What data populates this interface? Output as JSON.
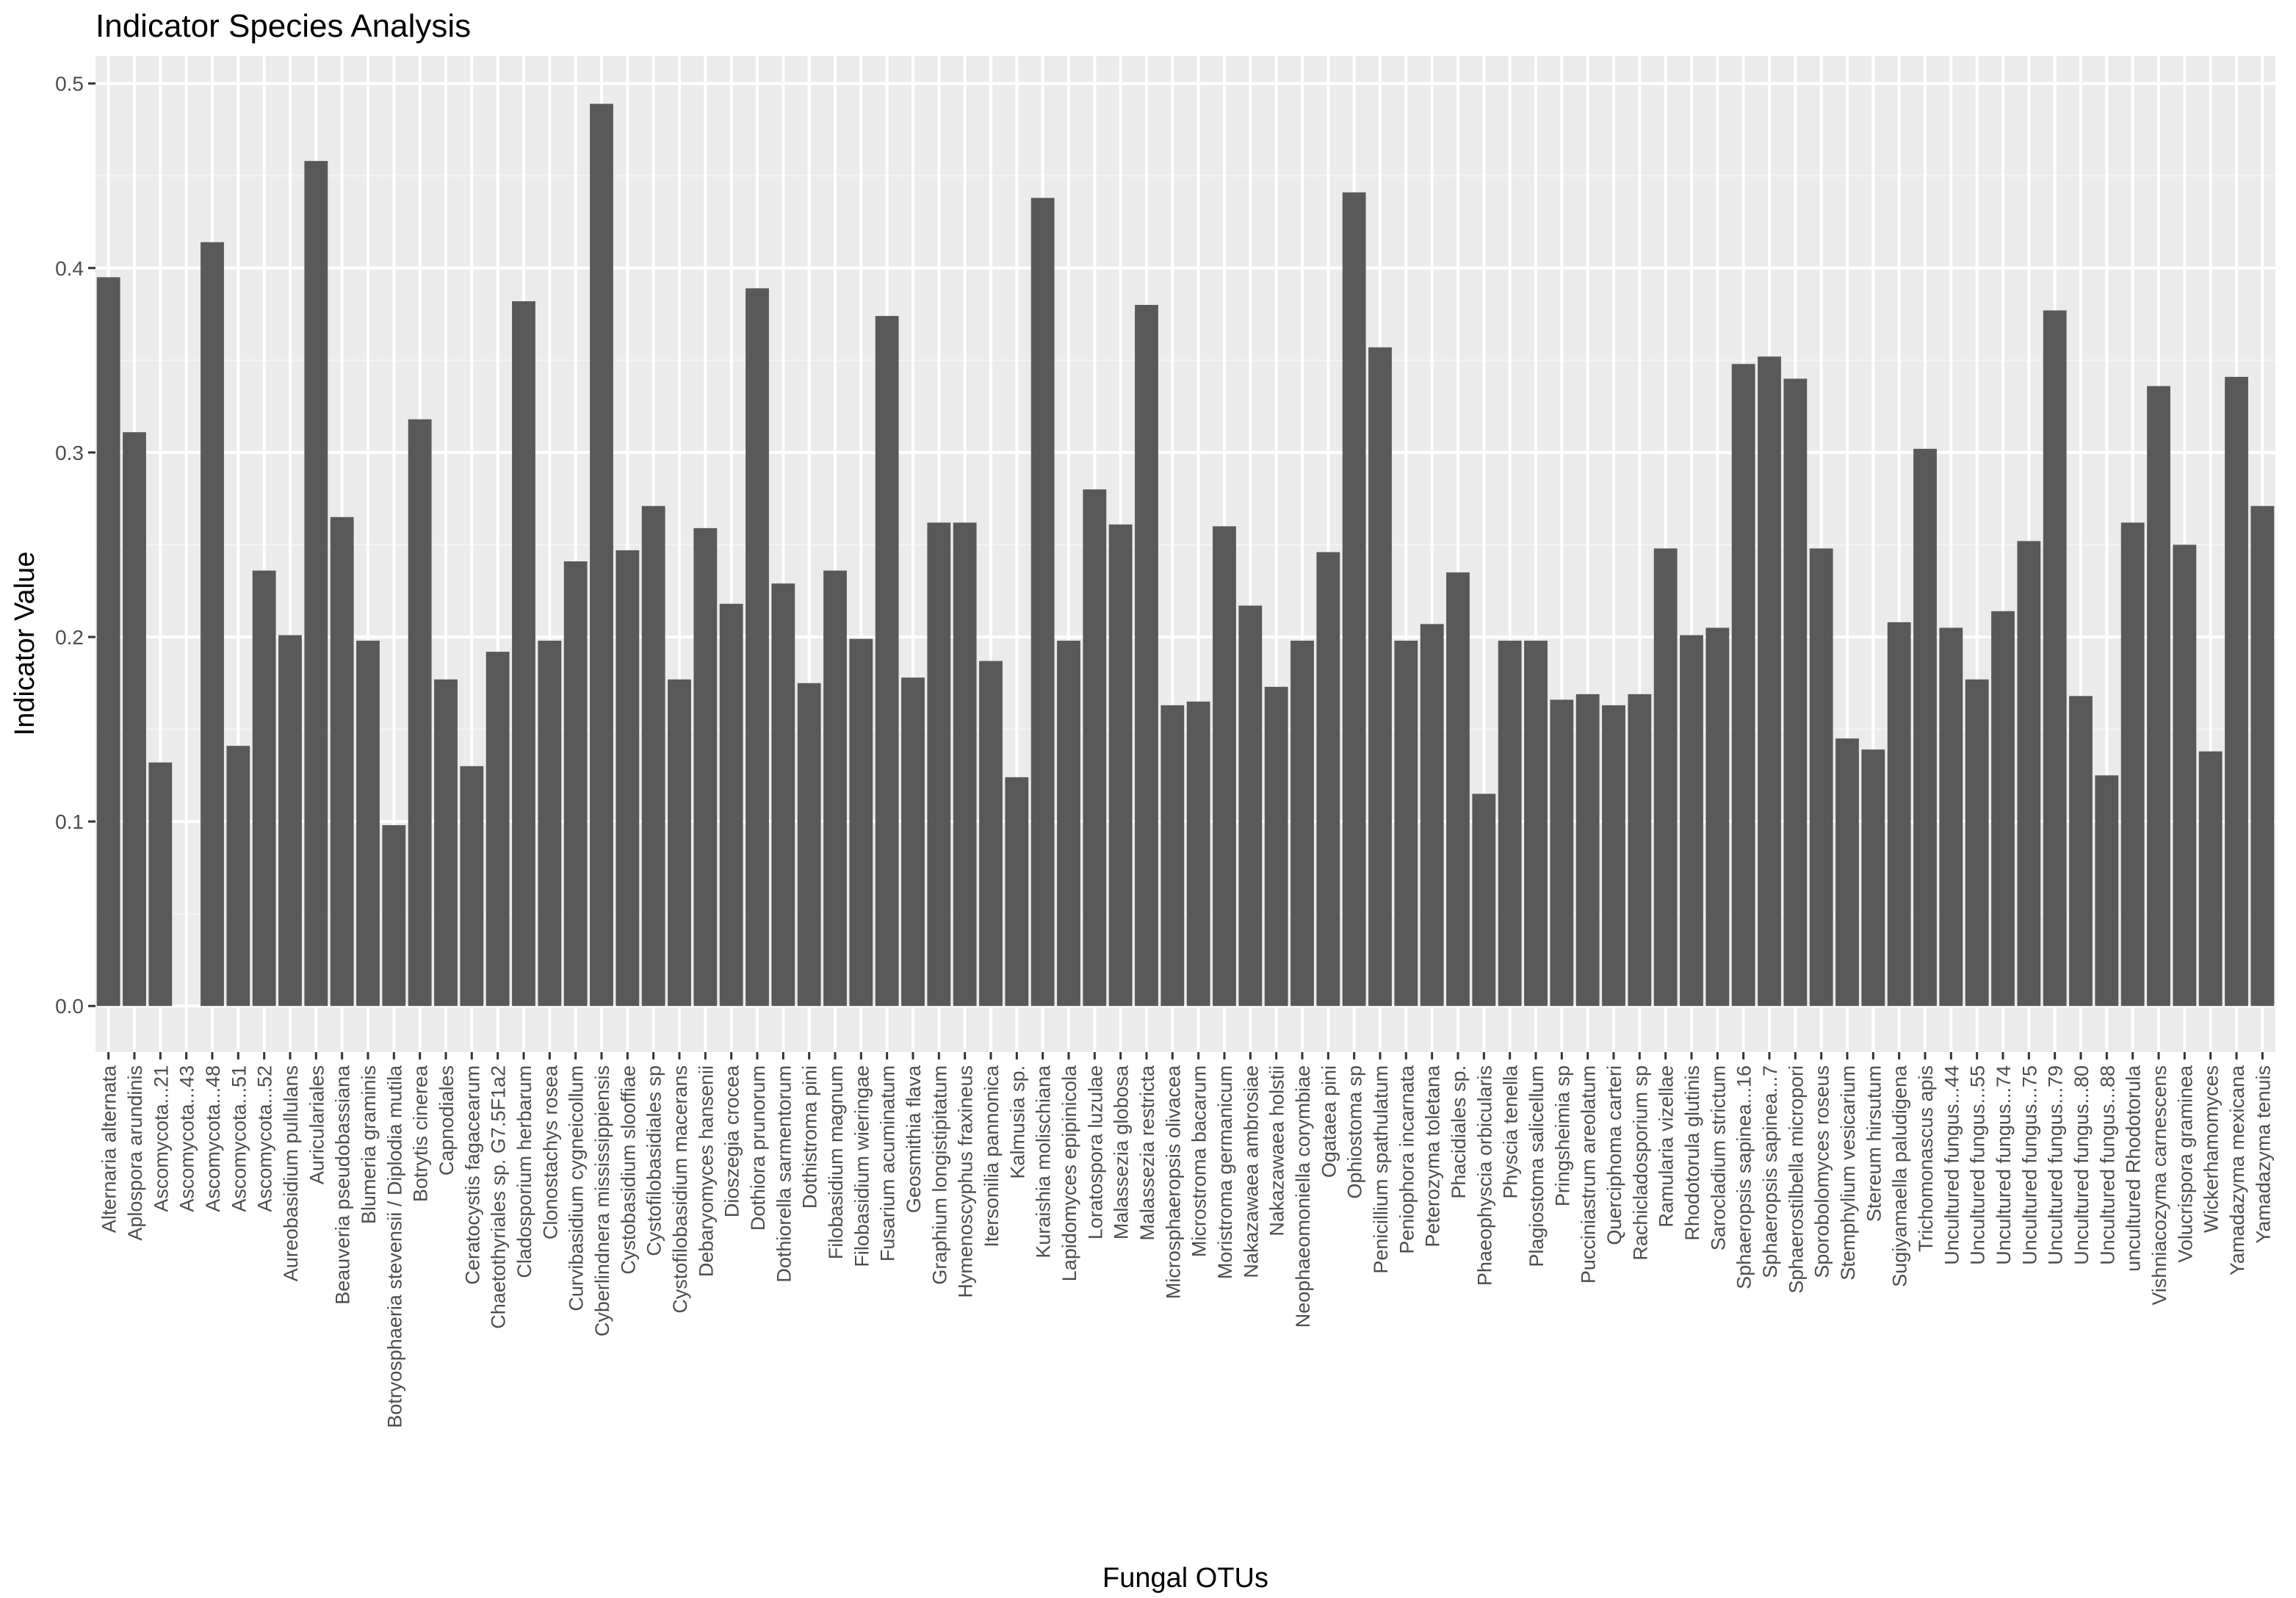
{
  "chart_data": {
    "type": "bar",
    "title": "Indicator Species Analysis",
    "xlabel": "Fungal OTUs",
    "ylabel": "Indicator Value",
    "ylim": [
      -0.025,
      0.515
    ],
    "yticks": [
      "0.0",
      "0.1",
      "0.2",
      "0.3",
      "0.4",
      "0.5"
    ],
    "grid": true,
    "legend": "none",
    "colors": {
      "bar": "#595959",
      "panel": "#ebebeb",
      "grid_major": "#ffffff",
      "grid_minor": "#f4f4f4",
      "tick_text": "#4d4d4d"
    },
    "categories": [
      "Alternaria alternata",
      "Aplospora arundinis",
      "Ascomycota...21",
      "Ascomycota...43",
      "Ascomycota...48",
      "Ascomycota...51",
      "Ascomycota...52",
      "Aureobasidium pullulans",
      "Auriculariales",
      "Beauveria pseudobassiana",
      "Blumeria graminis",
      "Botryosphaeria stevensii / Diplodia mutila",
      "Botrytis cinerea",
      "Capnodiales",
      "Ceratocystis fagacearum",
      "Chaetothyriales sp. G7.5F1a2",
      "Cladosporium herbarum",
      "Clonostachys rosea",
      "Curvibasidium cygneicollum",
      "Cyberlindnera mississippiensis",
      "Cystobasidium slooffiae",
      "Cystofilobasidiales sp",
      "Cystofilobasidium macerans",
      "Debaryomyces hansenii",
      "Dioszegia crocea",
      "Dothiora prunorum",
      "Dothiorella sarmentorum",
      "Dothistroma pini",
      "Filobasidium magnum",
      "Filobasidium wieringae",
      "Fusarium acuminatum",
      "Geosmithia flava",
      "Graphium longistipitatum",
      "Hymenoscyphus fraxineus",
      "Itersonilia pannonica",
      "Kalmusia sp.",
      "Kuraishia molischiana",
      "Lapidomyces epipinicola",
      "Loratospora luzulae",
      "Malassezia globosa",
      "Malassezia restricta",
      "Microsphaeropsis olivacea",
      "Microstroma bacarum",
      "Moristroma germanicum",
      "Nakazawaea ambrosiae",
      "Nakazawaea holstii",
      "Neophaeomoniella corymbiae",
      "Ogataea pini",
      "Ophiostoma sp",
      "Penicillium spathulatum",
      "Peniophora incarnata",
      "Peterozyma toletana",
      "Phacidiales sp.",
      "Phaeophyscia orbicularis",
      "Physcia tenella",
      "Plagiostoma salicellum",
      "Pringsheimia sp",
      "Pucciniastrum areolatum",
      "Querciphoma carteri",
      "Rachicladosporium sp",
      "Ramularia vizellae",
      "Rhodotorula glutinis",
      "Sarocladium strictum",
      "Sphaeropsis sapinea...16",
      "Sphaeropsis sapinea...7",
      "Sphaerostilbella micropori",
      "Sporobolomyces roseus",
      "Stemphylium vesicarium",
      "Stereum hirsutum",
      "Sugiyamaella paludigena",
      "Trichomonascus apis",
      "Uncultured fungus...44",
      "Uncultured fungus...55",
      "Uncultured fungus...74",
      "Uncultured fungus...75",
      "Uncultured fungus...79",
      "Uncultured fungus...80",
      "Uncultured fungus...88",
      "uncultured Rhodotorula",
      "Vishniacozyma carnescens",
      "Volucrispora graminea",
      "Wickerhamomyces",
      "Yamadazyma mexicana",
      "Yamadazyma tenuis"
    ],
    "values": [
      0.395,
      0.311,
      0.132,
      0.0,
      0.414,
      0.141,
      0.236,
      0.201,
      0.458,
      0.265,
      0.198,
      0.098,
      0.318,
      0.177,
      0.13,
      0.192,
      0.382,
      0.198,
      0.241,
      0.489,
      0.247,
      0.271,
      0.177,
      0.259,
      0.218,
      0.389,
      0.229,
      0.175,
      0.236,
      0.199,
      0.374,
      0.178,
      0.262,
      0.262,
      0.187,
      0.124,
      0.438,
      0.198,
      0.28,
      0.261,
      0.38,
      0.163,
      0.165,
      0.26,
      0.217,
      0.173,
      0.198,
      0.246,
      0.441,
      0.357,
      0.198,
      0.207,
      0.235,
      0.115,
      0.198,
      0.198,
      0.166,
      0.169,
      0.163,
      0.169,
      0.248,
      0.201,
      0.205,
      0.348,
      0.352,
      0.34,
      0.248,
      0.145,
      0.139,
      0.208,
      0.302,
      0.205,
      0.177,
      0.214,
      0.252,
      0.377,
      0.168,
      0.125,
      0.262,
      0.336,
      0.25,
      0.138,
      0.341,
      0.271
    ]
  }
}
